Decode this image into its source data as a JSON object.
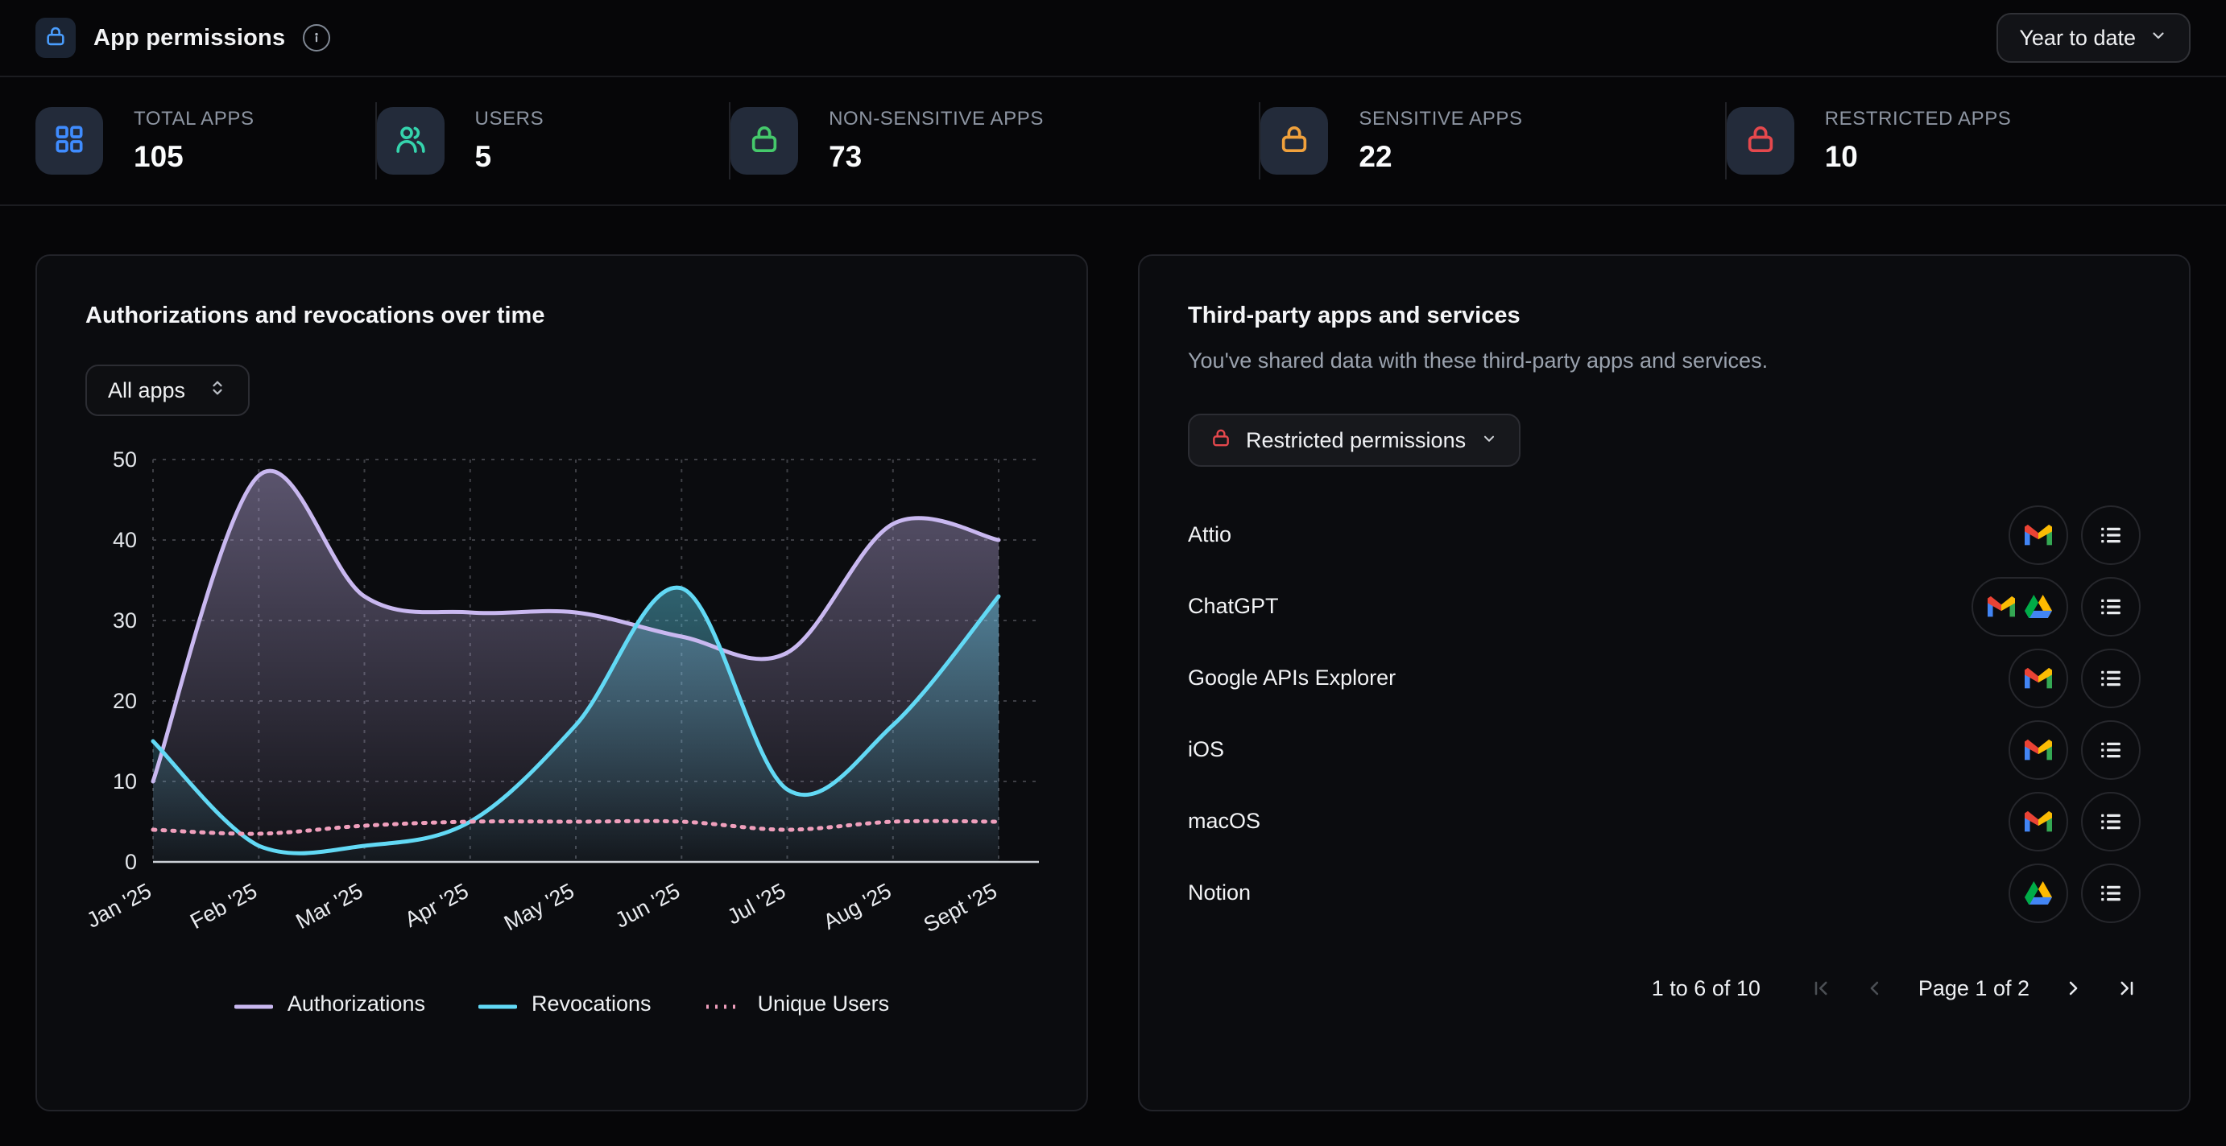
{
  "header": {
    "title": "App permissions",
    "range_label": "Year to date"
  },
  "stats": [
    {
      "label": "TOTAL APPS",
      "value": "105",
      "icon": "grid-icon",
      "color": "#3f8cff"
    },
    {
      "label": "USERS",
      "value": "5",
      "icon": "users-icon",
      "color": "#35d4ad"
    },
    {
      "label": "NON-SENSITIVE APPS",
      "value": "73",
      "icon": "lock-icon",
      "color": "#45c96b"
    },
    {
      "label": "SENSITIVE APPS",
      "value": "22",
      "icon": "lock-icon",
      "color": "#f0a13c"
    },
    {
      "label": "RESTRICTED APPS",
      "value": "10",
      "icon": "lock-icon",
      "color": "#e5484d"
    }
  ],
  "chart_card": {
    "title": "Authorizations and revocations over time",
    "filter_label": "All apps"
  },
  "chart_data": {
    "type": "line",
    "x": [
      "Jan '25",
      "Feb '25",
      "Mar '25",
      "Apr '25",
      "May '25",
      "Jun '25",
      "Jul '25",
      "Aug '25",
      "Sept '25"
    ],
    "series": [
      {
        "name": "Authorizations",
        "color": "#c9b8f0",
        "style": "solid",
        "fill": true,
        "values": [
          10,
          48,
          33,
          31,
          31,
          28,
          26,
          42,
          40
        ]
      },
      {
        "name": "Revocations",
        "color": "#62d9f5",
        "style": "solid",
        "fill": true,
        "values": [
          15,
          2,
          2,
          5,
          17,
          34,
          9,
          17,
          33
        ]
      },
      {
        "name": "Unique Users",
        "color": "#ef9fbc",
        "style": "dotted",
        "fill": false,
        "values": [
          4,
          3.5,
          4.5,
          5,
          5,
          5,
          4,
          5,
          5
        ]
      }
    ],
    "ylim": [
      0,
      50
    ],
    "yticks": [
      0,
      10,
      20,
      30,
      40,
      50
    ],
    "grid": true,
    "legend_position": "bottom"
  },
  "apps_card": {
    "title": "Third-party apps and services",
    "subtitle": "You've shared data with these third-party apps and services.",
    "filter_label": "Restricted permissions",
    "rows": [
      {
        "name": "Attio",
        "services": [
          "gmail"
        ]
      },
      {
        "name": "ChatGPT",
        "services": [
          "gmail",
          "drive"
        ]
      },
      {
        "name": "Google APIs Explorer",
        "services": [
          "gmail"
        ]
      },
      {
        "name": "iOS",
        "services": [
          "gmail"
        ]
      },
      {
        "name": "macOS",
        "services": [
          "gmail"
        ]
      },
      {
        "name": "Notion",
        "services": [
          "drive"
        ]
      }
    ],
    "pagination": {
      "range": "1 to 6 of 10",
      "page": "Page 1 of 2"
    }
  }
}
